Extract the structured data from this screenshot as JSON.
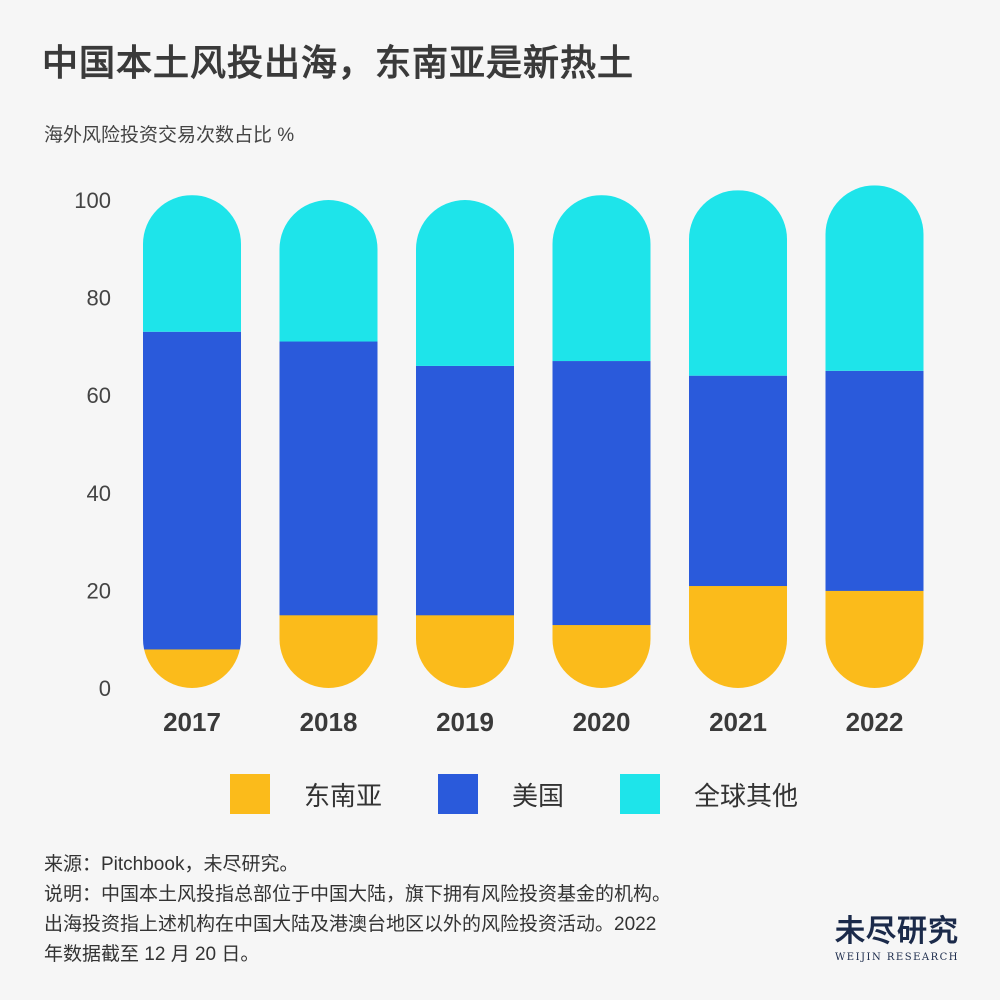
{
  "title": "中国本土风投出海，东南亚是新热土",
  "subtitle": "海外风险投资交易次数占比 %",
  "colors": {
    "southeast_asia": "#FBBB1B",
    "usa": "#2A5ADB",
    "other": "#1EE4EA",
    "axis_text": "#444444",
    "year_text": "#3a3a3a"
  },
  "chart_data": {
    "type": "bar",
    "stacked": true,
    "categories": [
      "2017",
      "2018",
      "2019",
      "2020",
      "2021",
      "2022"
    ],
    "ylim": [
      0,
      100
    ],
    "yticks": [
      "0",
      "20",
      "40",
      "60",
      "80",
      "100"
    ],
    "series": [
      {
        "name": "东南亚",
        "values": [
          8,
          15,
          15,
          13,
          21,
          20
        ]
      },
      {
        "name": "美国",
        "values": [
          65,
          56,
          51,
          54,
          43,
          45
        ]
      },
      {
        "name": "全球其他",
        "values": [
          28,
          29,
          34,
          34,
          38,
          38
        ]
      }
    ],
    "legend": "bottom"
  },
  "legend": {
    "items": [
      {
        "label": "东南亚",
        "color": "#FBBB1B"
      },
      {
        "label": "美国",
        "color": "#2A5ADB"
      },
      {
        "label": "全球其他",
        "color": "#1EE4EA"
      }
    ]
  },
  "footer": {
    "source": "来源：Pitchbook，未尽研究。",
    "note1": "说明：中国本土风投指总部位于中国大陆，旗下拥有风险投资基金的机构。",
    "note2": "出海投资指上述机构在中国大陆及港澳台地区以外的风险投资活动。2022",
    "note3": "年数据截至 12 月 20 日。"
  },
  "brand": {
    "cn": "未尽研究",
    "en": "WEIJIN RESEARCH"
  }
}
